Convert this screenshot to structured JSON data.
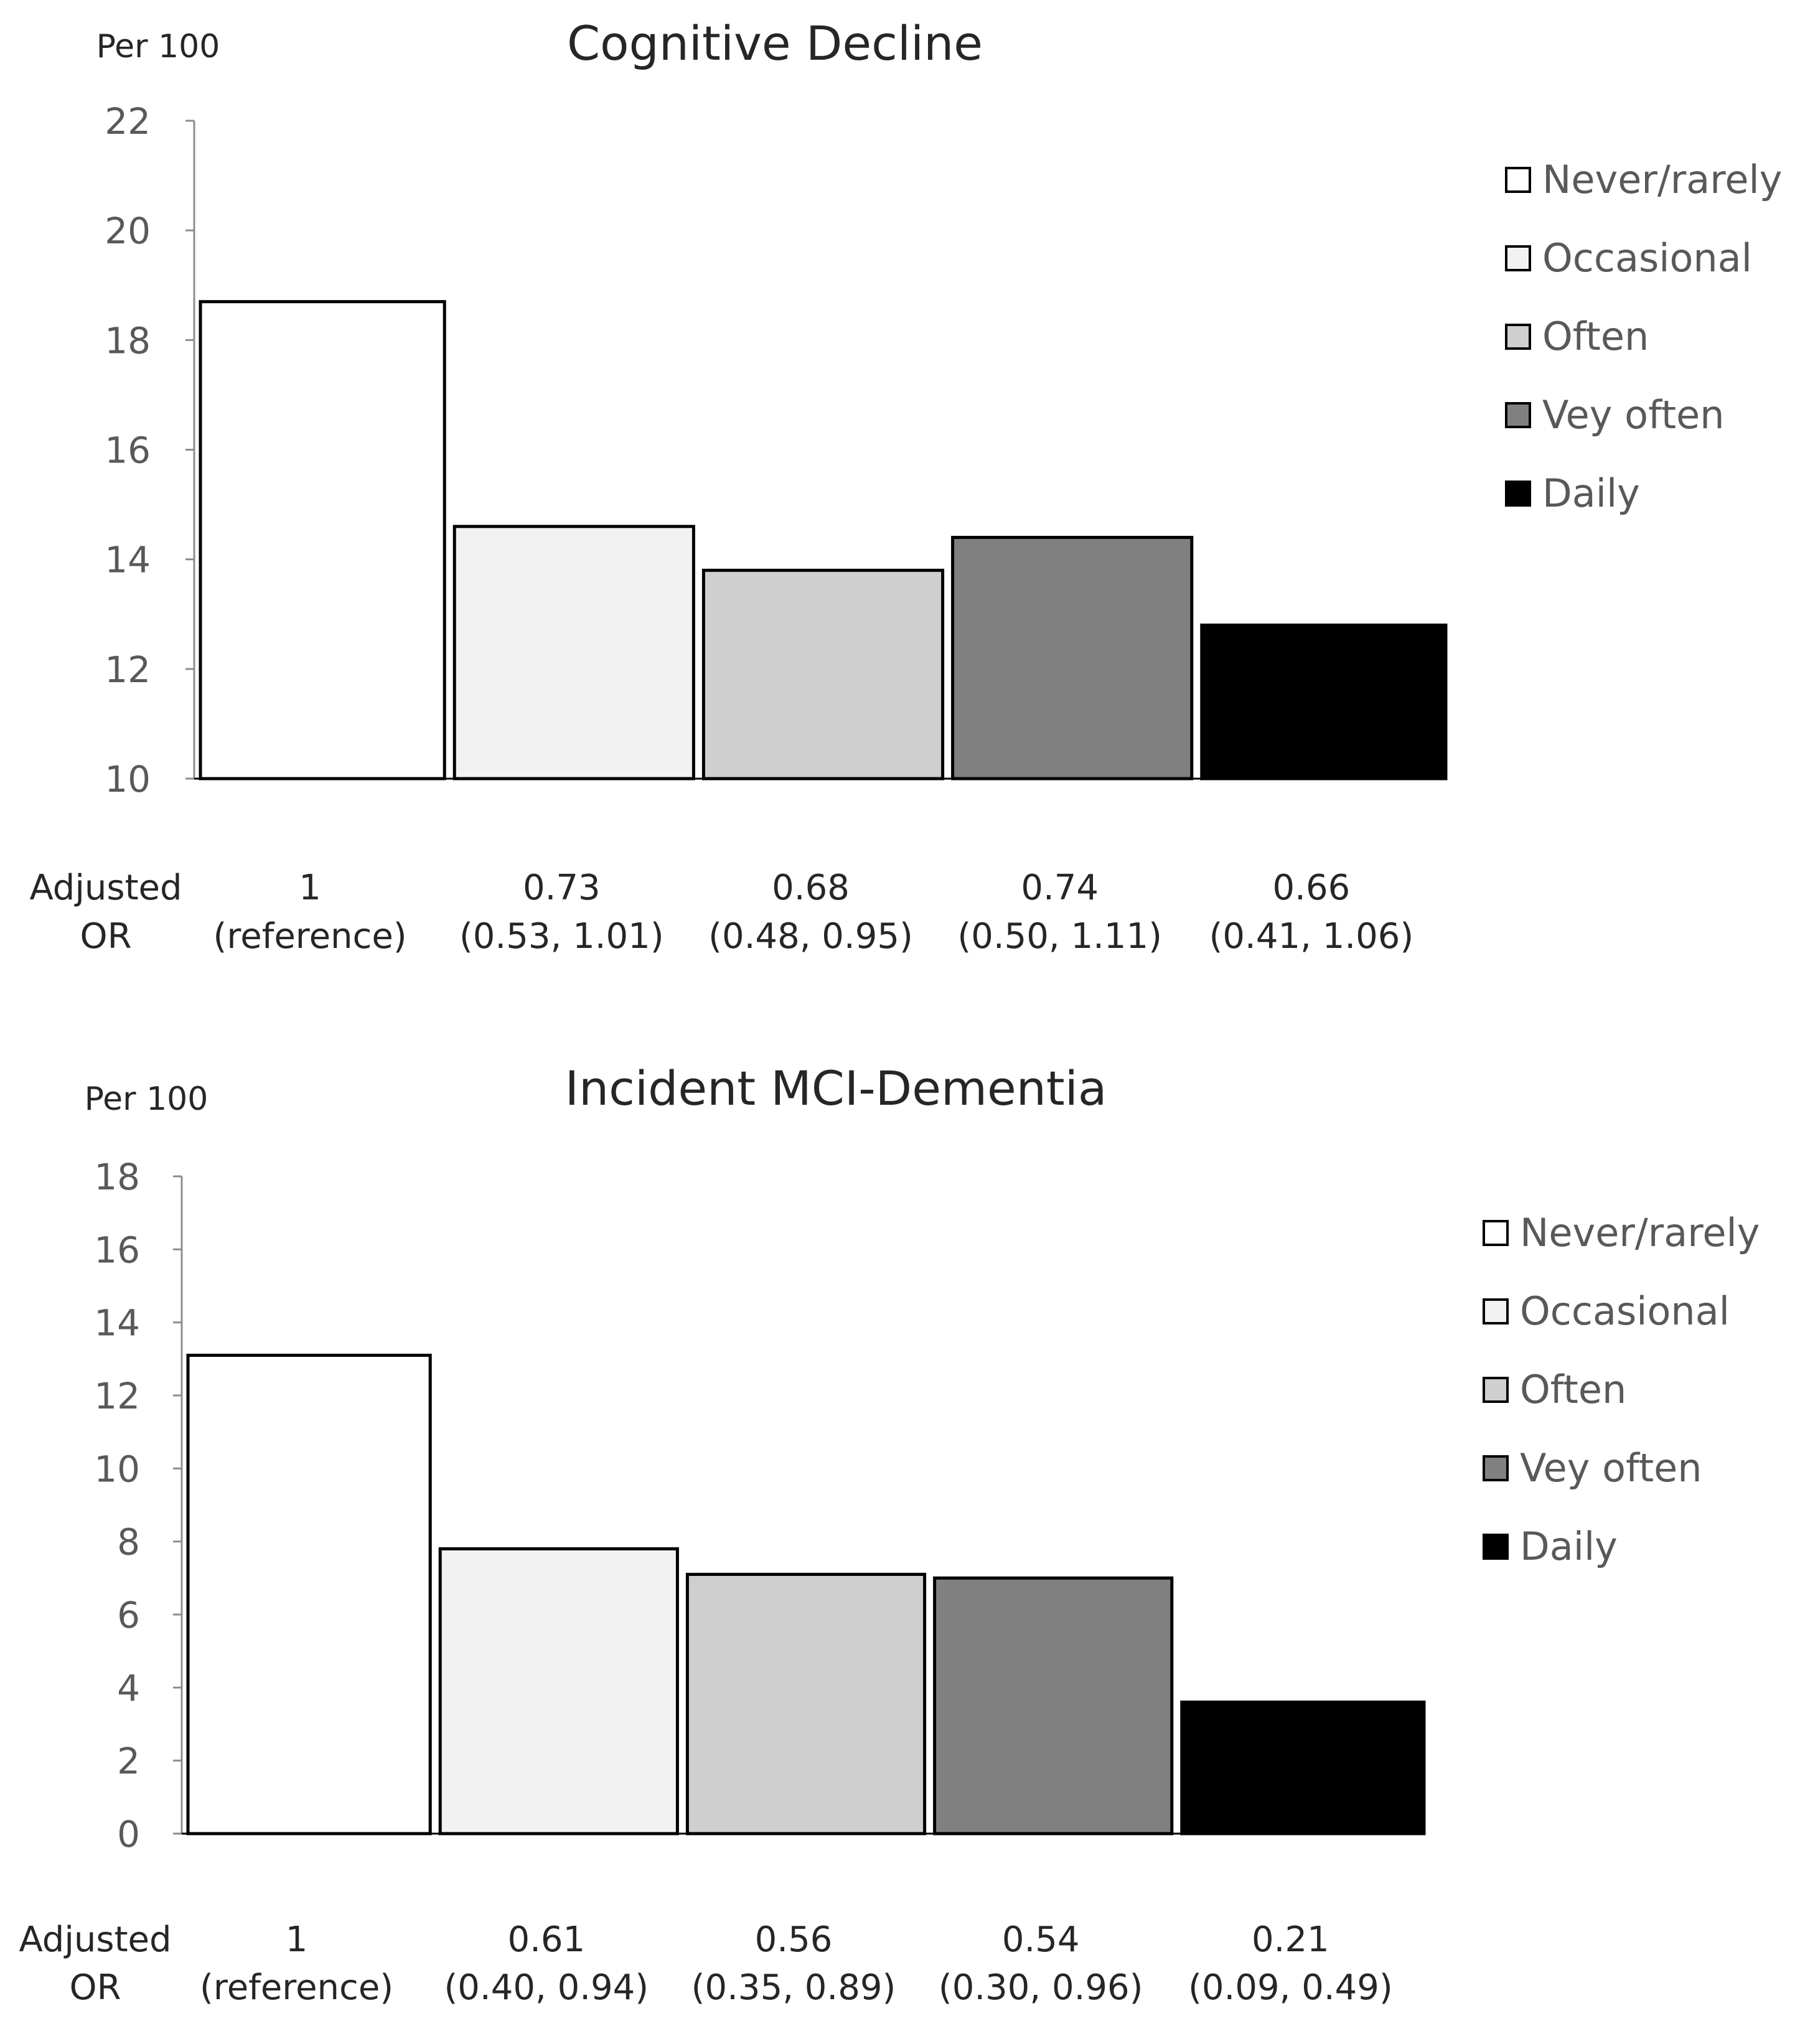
{
  "chart_data": [
    {
      "type": "bar",
      "title": "Cognitive Decline",
      "ylabel": "Per 100",
      "xlabel": "",
      "ylim": [
        10,
        22
      ],
      "yticks": [
        10,
        12,
        14,
        16,
        18,
        20,
        22
      ],
      "categories": [
        "Never/rarely",
        "Occasional",
        "Often",
        "Vey often",
        "Daily"
      ],
      "values": [
        18.7,
        14.6,
        13.8,
        14.4,
        12.8
      ],
      "colors": [
        "#ffffff",
        "#f2f2f2",
        "#d0cfd0",
        "#808080",
        "#000000"
      ],
      "legend": [
        "Never/rarely",
        "Occasional",
        "Often",
        "Vey often",
        "Daily"
      ],
      "legend_position": "right",
      "or_label": [
        "Adjusted",
        "OR"
      ],
      "or_values": [
        "1",
        "0.73",
        "0.68",
        "0.74",
        "0.66"
      ],
      "or_ci": [
        "(reference)",
        "(0.53, 1.01)",
        "(0.48, 0.95)",
        "(0.50, 1.11)",
        "(0.41, 1.06)"
      ]
    },
    {
      "type": "bar",
      "title": "Incident MCI-Dementia",
      "ylabel": "Per 100",
      "xlabel": "",
      "ylim": [
        0,
        18
      ],
      "yticks": [
        0,
        2,
        4,
        6,
        8,
        10,
        12,
        14,
        16,
        18
      ],
      "categories": [
        "Never/rarely",
        "Occasional",
        "Often",
        "Vey often",
        "Daily"
      ],
      "values": [
        13.1,
        7.8,
        7.1,
        7.0,
        3.6
      ],
      "colors": [
        "#ffffff",
        "#f2f2f2",
        "#d0cfd0",
        "#808080",
        "#000000"
      ],
      "legend": [
        "Never/rarely",
        "Occasional",
        "Often",
        "Vey often",
        "Daily"
      ],
      "legend_position": "right",
      "or_label": [
        "Adjusted",
        "OR"
      ],
      "or_values": [
        "1",
        "0.61",
        "0.56",
        "0.54",
        "0.21"
      ],
      "or_ci": [
        "(reference)",
        "(0.40, 0.94)",
        "(0.35, 0.89)",
        "(0.30, 0.96)",
        "(0.09, 0.49)"
      ]
    }
  ]
}
